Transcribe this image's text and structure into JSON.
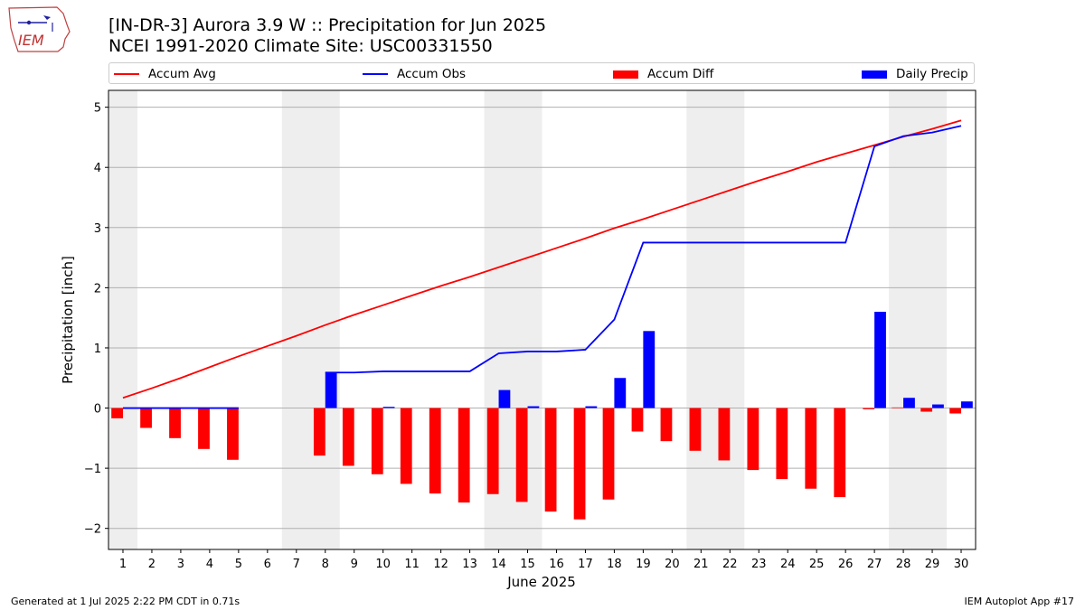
{
  "header": {
    "title": "[IN-DR-3] Aurora 3.9 W :: Precipitation for Jun 2025",
    "subtitle": "NCEI 1991-2020 Climate Site: USC00331550"
  },
  "logo": {
    "text": "IEM",
    "icon": "iowa-state-logo-icon"
  },
  "footer": {
    "generated": "Generated at 1 Jul 2025 2:22 PM CDT in 0.71s",
    "app": "IEM Autoplot App #17"
  },
  "legend": {
    "accum_avg": "Accum Avg",
    "accum_obs": "Accum Obs",
    "accum_diff": "Accum Diff",
    "daily_precip": "Daily Precip"
  },
  "colors": {
    "avg": "#ff0000",
    "obs": "#0000ff",
    "diff": "#ff0000",
    "daily": "#0000ff",
    "weekend_shade": "#eeeeee",
    "grid": "#b0b0b0"
  },
  "chart_data": {
    "type": "bar",
    "title": "[IN-DR-3] Aurora 3.9 W :: Precipitation for Jun 2025",
    "xlabel": "June 2025",
    "ylabel": "Precipitation [inch]",
    "ylim": [
      -2.35,
      5.28
    ],
    "xlim": [
      0.5,
      30.5
    ],
    "yticks": [
      -2,
      -1,
      0,
      1,
      2,
      3,
      4,
      5
    ],
    "ytick_labels": [
      "−2",
      "−1",
      "0",
      "1",
      "2",
      "3",
      "4",
      "5"
    ],
    "categories": [
      1,
      2,
      3,
      4,
      5,
      6,
      7,
      8,
      9,
      10,
      11,
      12,
      13,
      14,
      15,
      16,
      17,
      18,
      19,
      20,
      21,
      22,
      23,
      24,
      25,
      26,
      27,
      28,
      29,
      30
    ],
    "grid": "horizontal",
    "legend_position": "top",
    "shaded_days": [
      [
        0.5,
        1.5
      ],
      [
        6.5,
        8.5
      ],
      [
        13.5,
        15.5
      ],
      [
        20.5,
        22.5
      ],
      [
        27.5,
        29.5
      ]
    ],
    "series": [
      {
        "name": "Accum Avg",
        "type": "line",
        "values": [
          0.17,
          0.33,
          0.5,
          0.68,
          0.86,
          1.03,
          1.2,
          1.38,
          1.55,
          1.71,
          1.87,
          2.03,
          2.18,
          2.34,
          2.5,
          2.66,
          2.82,
          2.99,
          3.14,
          3.3,
          3.46,
          3.62,
          3.78,
          3.93,
          4.09,
          4.23,
          4.37,
          4.51,
          4.64,
          4.78
        ]
      },
      {
        "name": "Accum Obs",
        "type": "line",
        "x": [
          1,
          2,
          3,
          4,
          5,
          8,
          9,
          10,
          11,
          12,
          13,
          14,
          15,
          16,
          17,
          18,
          19,
          20,
          21,
          22,
          23,
          24,
          25,
          26,
          27,
          28,
          29,
          30
        ],
        "values": [
          0,
          0,
          0,
          0,
          0,
          0.59,
          0.59,
          0.61,
          0.61,
          0.61,
          0.61,
          0.91,
          0.94,
          0.94,
          0.97,
          1.47,
          2.75,
          2.75,
          2.75,
          2.75,
          2.75,
          2.75,
          2.75,
          2.75,
          4.35,
          4.52,
          4.58,
          4.69
        ]
      },
      {
        "name": "Accum Diff",
        "type": "bar",
        "x": [
          1,
          2,
          3,
          4,
          5,
          8,
          9,
          10,
          11,
          12,
          13,
          14,
          15,
          16,
          17,
          18,
          19,
          20,
          21,
          22,
          23,
          24,
          25,
          26,
          27,
          28,
          29,
          30
        ],
        "values": [
          -0.17,
          -0.33,
          -0.5,
          -0.68,
          -0.86,
          -0.79,
          -0.96,
          -1.1,
          -1.26,
          -1.42,
          -1.57,
          -1.43,
          -1.56,
          -1.72,
          -1.85,
          -1.52,
          -0.39,
          -0.55,
          -0.71,
          -0.87,
          -1.03,
          -1.18,
          -1.34,
          -1.48,
          -0.02,
          0.01,
          -0.06,
          -0.09
        ]
      },
      {
        "name": "Daily Precip",
        "type": "bar",
        "x": [
          8,
          10,
          14,
          15,
          17,
          18,
          19,
          27,
          28,
          29,
          30
        ],
        "values": [
          0.59,
          0.02,
          0.3,
          0.03,
          0.03,
          0.5,
          1.28,
          1.6,
          0.17,
          0.06,
          0.11
        ]
      }
    ]
  }
}
